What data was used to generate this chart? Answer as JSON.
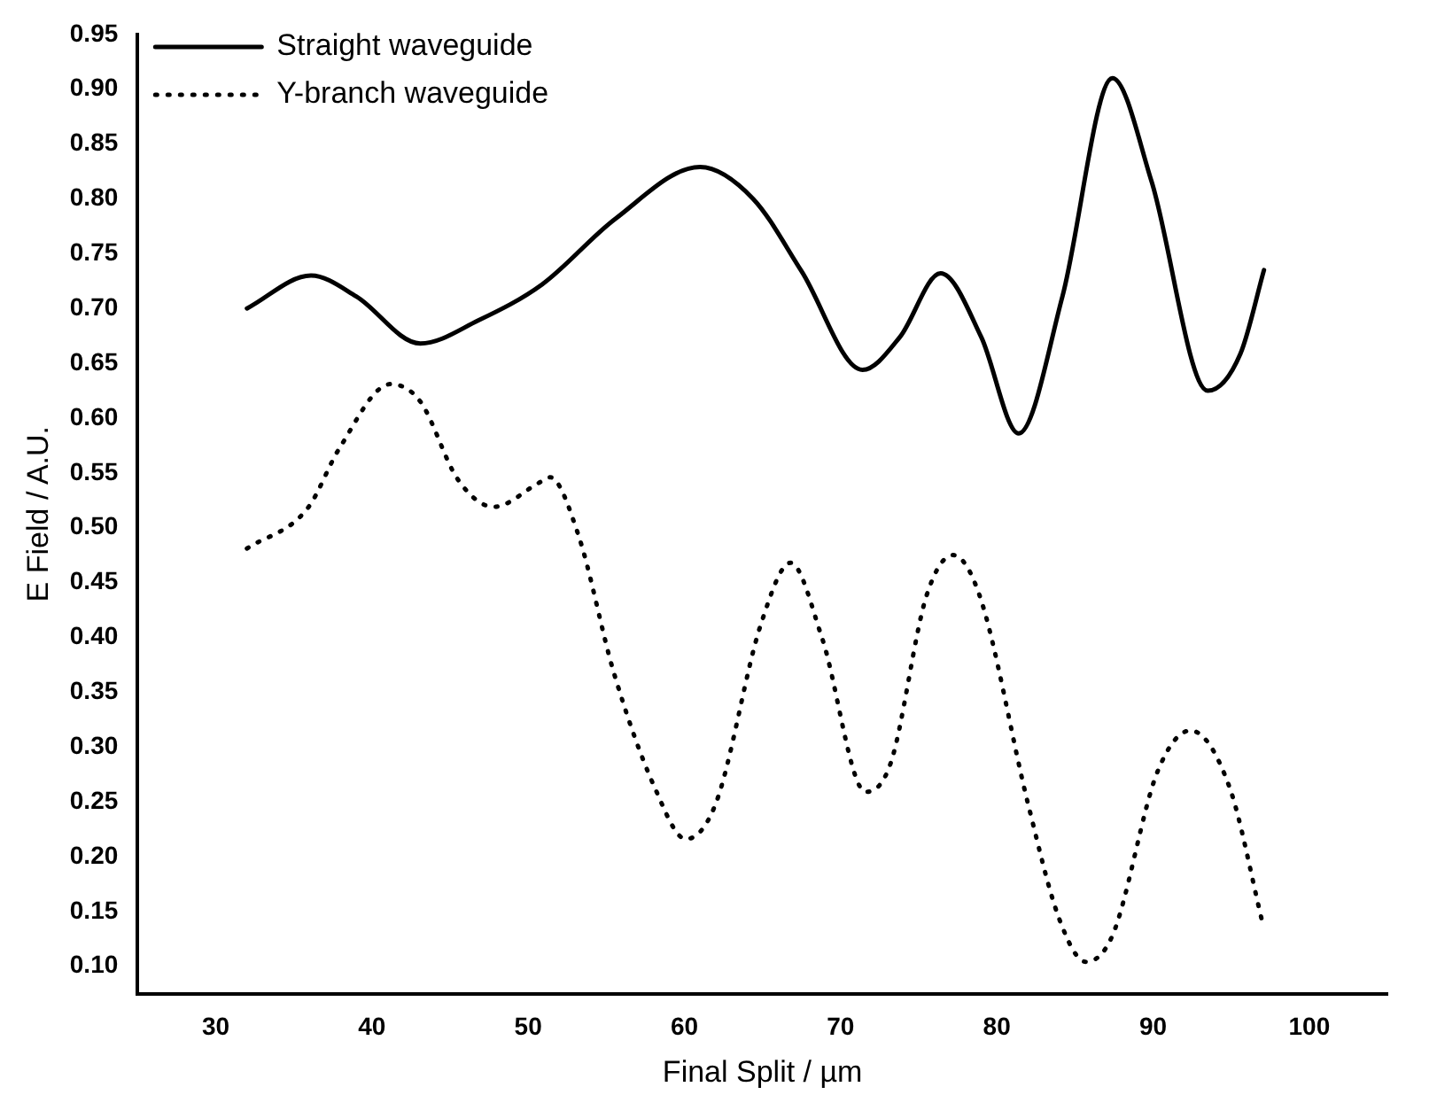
{
  "chart_data": {
    "type": "line",
    "xlabel": "Final Split / µm",
    "ylabel": "E Field / A.U.",
    "xlim": [
      25,
      105
    ],
    "xticks": [
      30,
      40,
      50,
      60,
      70,
      80,
      90,
      100
    ],
    "ylim": [
      0.075,
      0.95
    ],
    "yticks": [
      {
        "value": 0.1,
        "label": "0.10"
      },
      {
        "value": 0.15,
        "label": "0.15"
      },
      {
        "value": 0.2,
        "label": "0.20"
      },
      {
        "value": 0.25,
        "label": "0.25"
      },
      {
        "value": 0.3,
        "label": "0.30"
      },
      {
        "value": 0.35,
        "label": "0.35"
      },
      {
        "value": 0.4,
        "label": "0.40"
      },
      {
        "value": 0.45,
        "label": "0.45"
      },
      {
        "value": 0.5,
        "label": "0.50"
      },
      {
        "value": 0.55,
        "label": "0.55"
      },
      {
        "value": 0.6,
        "label": "0.60"
      },
      {
        "value": 0.65,
        "label": "0.65"
      },
      {
        "value": 0.7,
        "label": "0.70"
      },
      {
        "value": 0.75,
        "label": "0.75"
      },
      {
        "value": 0.8,
        "label": "0.80"
      },
      {
        "value": 0.85,
        "label": "0.85"
      },
      {
        "value": 0.9,
        "label": "0.90"
      },
      {
        "value": 0.95,
        "label": "0.95"
      }
    ],
    "grid": false,
    "legend": "top left",
    "marker": "none",
    "series": [
      {
        "name": "Straight waveguide",
        "color": "#000000",
        "line_style": "solid",
        "x": [
          32.0,
          36.1,
          39.0,
          43.1,
          46.8,
          50.9,
          55.6,
          61.0,
          64.4,
          67.5,
          71.4,
          73.8,
          76.4,
          79.0,
          81.4,
          84.2,
          87.4,
          89.9,
          93.5,
          95.6,
          97.1
        ],
        "values": [
          0.7,
          0.73,
          0.711,
          0.668,
          0.689,
          0.722,
          0.782,
          0.829,
          0.8,
          0.734,
          0.644,
          0.674,
          0.732,
          0.674,
          0.586,
          0.711,
          0.91,
          0.816,
          0.625,
          0.659,
          0.735
        ]
      },
      {
        "name": "Y-branch waveguide",
        "color": "#000000",
        "line_style": "dotted",
        "x": [
          32.0,
          35.9,
          37.9,
          41.2,
          43.1,
          45.5,
          47.8,
          50.7,
          51.4,
          53.2,
          55.5,
          58.1,
          60.1,
          62.0,
          64.9,
          66.8,
          68.8,
          71.6,
          73.2,
          75.5,
          77.2,
          78.9,
          82.0,
          84.0,
          85.7,
          87.4,
          90.3,
          92.4,
          94.9,
          97.0
        ],
        "values": [
          0.481,
          0.518,
          0.572,
          0.631,
          0.615,
          0.544,
          0.519,
          0.541,
          0.546,
          0.494,
          0.367,
          0.263,
          0.216,
          0.248,
          0.412,
          0.468,
          0.4,
          0.259,
          0.285,
          0.438,
          0.475,
          0.438,
          0.248,
          0.143,
          0.104,
          0.128,
          0.278,
          0.315,
          0.263,
          0.14
        ]
      }
    ]
  }
}
